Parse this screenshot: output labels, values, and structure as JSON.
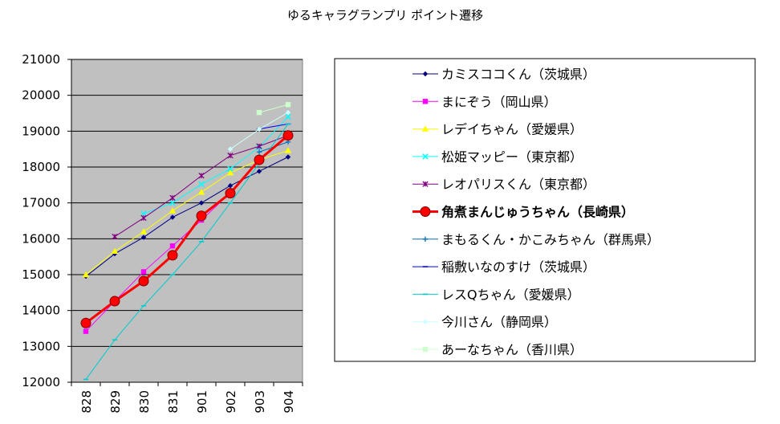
{
  "chart_data": {
    "type": "line",
    "title": "ゆるキャラグランプリ ポイント遷移",
    "xlabel": "",
    "ylabel": "",
    "categories": [
      "828",
      "829",
      "830",
      "831",
      "901",
      "902",
      "903",
      "904"
    ],
    "ylim": [
      12000,
      21000
    ],
    "yticks": [
      "21000",
      "20000",
      "19000",
      "18000",
      "17000",
      "16000",
      "15000",
      "14000",
      "13000",
      "12000"
    ],
    "grid": true,
    "legend_position": "right",
    "plot_background": "#c0c0c0",
    "series": [
      {
        "name": "カミスココくん（茨城県）",
        "color": "#000080",
        "marker": "diamond",
        "values": [
          14950,
          15580,
          16040,
          16600,
          17000,
          17480,
          17880,
          18280
        ]
      },
      {
        "name": "まにぞう（岡山県）",
        "color": "#ff00ff",
        "marker": "square",
        "values": [
          13420,
          14260,
          15080,
          15800,
          16520,
          17280,
          18200,
          18900
        ]
      },
      {
        "name": "レデイちゃん（愛媛県）",
        "color": "#ffff00",
        "marker": "triangle",
        "values": [
          15000,
          15650,
          16200,
          16780,
          17300,
          17840,
          18200,
          18460
        ]
      },
      {
        "name": "松姫マッピー（東京都）",
        "color": "#00ffff",
        "marker": "x",
        "values": [
          null,
          null,
          16700,
          17000,
          17520,
          17950,
          18550,
          19400
        ]
      },
      {
        "name": "レオパリスくん（東京都）",
        "color": "#800080",
        "marker": "star",
        "values": [
          null,
          16060,
          16580,
          17140,
          17760,
          18320,
          18580,
          18880
        ]
      },
      {
        "name": "角煮まんじゅうちゃん（長崎県）",
        "color": "#ff0000",
        "marker": "circle",
        "bold": true,
        "values": [
          13650,
          14260,
          14820,
          15540,
          16640,
          17270,
          18200,
          18880
        ]
      },
      {
        "name": "まもるくん・かこみちゃん（群馬県）",
        "color": "#0070c0",
        "marker": "plus",
        "values": [
          null,
          null,
          null,
          null,
          null,
          null,
          18420,
          18700
        ]
      },
      {
        "name": "稲敷いなのすけ（茨城県）",
        "color": "#0000ff",
        "marker": "dash",
        "values": [
          null,
          null,
          null,
          null,
          null,
          null,
          19060,
          19200
        ]
      },
      {
        "name": "レスQちゃん（愛媛県）",
        "color": "#00cccc",
        "marker": "dash",
        "values": [
          12080,
          13180,
          14130,
          15000,
          15920,
          17000,
          18100,
          19200
        ]
      },
      {
        "name": "今川さん（静岡県）",
        "color": "#ccffff",
        "marker": "diamond",
        "values": [
          null,
          null,
          null,
          null,
          null,
          18500,
          19050,
          19520
        ]
      },
      {
        "name": "あーなちゃん（香川県）",
        "color": "#ccffcc",
        "marker": "square",
        "values": [
          null,
          null,
          null,
          null,
          null,
          null,
          19520,
          19740
        ]
      }
    ]
  }
}
